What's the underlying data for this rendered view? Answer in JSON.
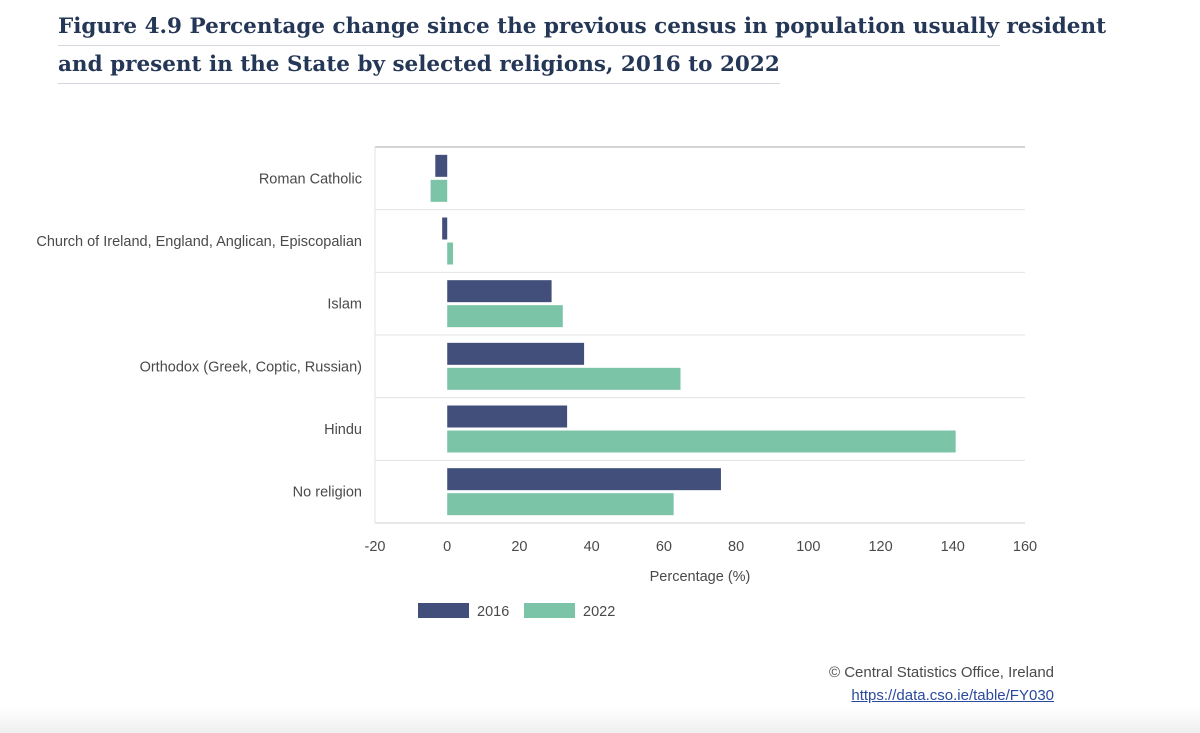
{
  "title": {
    "line1": "Figure 4.9 Percentage change since the previous census in population usually resident",
    "line2": "and present in the State by selected religions, 2016 to 2022"
  },
  "chart_data": {
    "type": "bar",
    "orientation": "horizontal",
    "categories": [
      "Roman Catholic",
      "Church of Ireland, England, Anglican, Episcopalian",
      "Islam",
      "Orthodox (Greek, Coptic, Russian)",
      "Hindu",
      "No religion"
    ],
    "series": [
      {
        "name": "2016",
        "color": "#414f7a",
        "values": [
          -3.3,
          -1.4,
          28.9,
          37.9,
          33.2,
          75.8
        ]
      },
      {
        "name": "2022",
        "color": "#7bc4a7",
        "values": [
          -4.6,
          1.6,
          32.0,
          64.6,
          140.8,
          62.7
        ]
      }
    ],
    "xlabel": "Percentage (%)",
    "xlim": [
      -20,
      160
    ],
    "xticks": [
      "-20",
      "0",
      "20",
      "40",
      "60",
      "80",
      "100",
      "120",
      "140",
      "160"
    ],
    "legend_position": "bottom-center",
    "grid": "horizontal category separators"
  },
  "credit": {
    "source": "© Central Statistics Office, Ireland",
    "link": "https://data.cso.ie/table/FY030"
  }
}
